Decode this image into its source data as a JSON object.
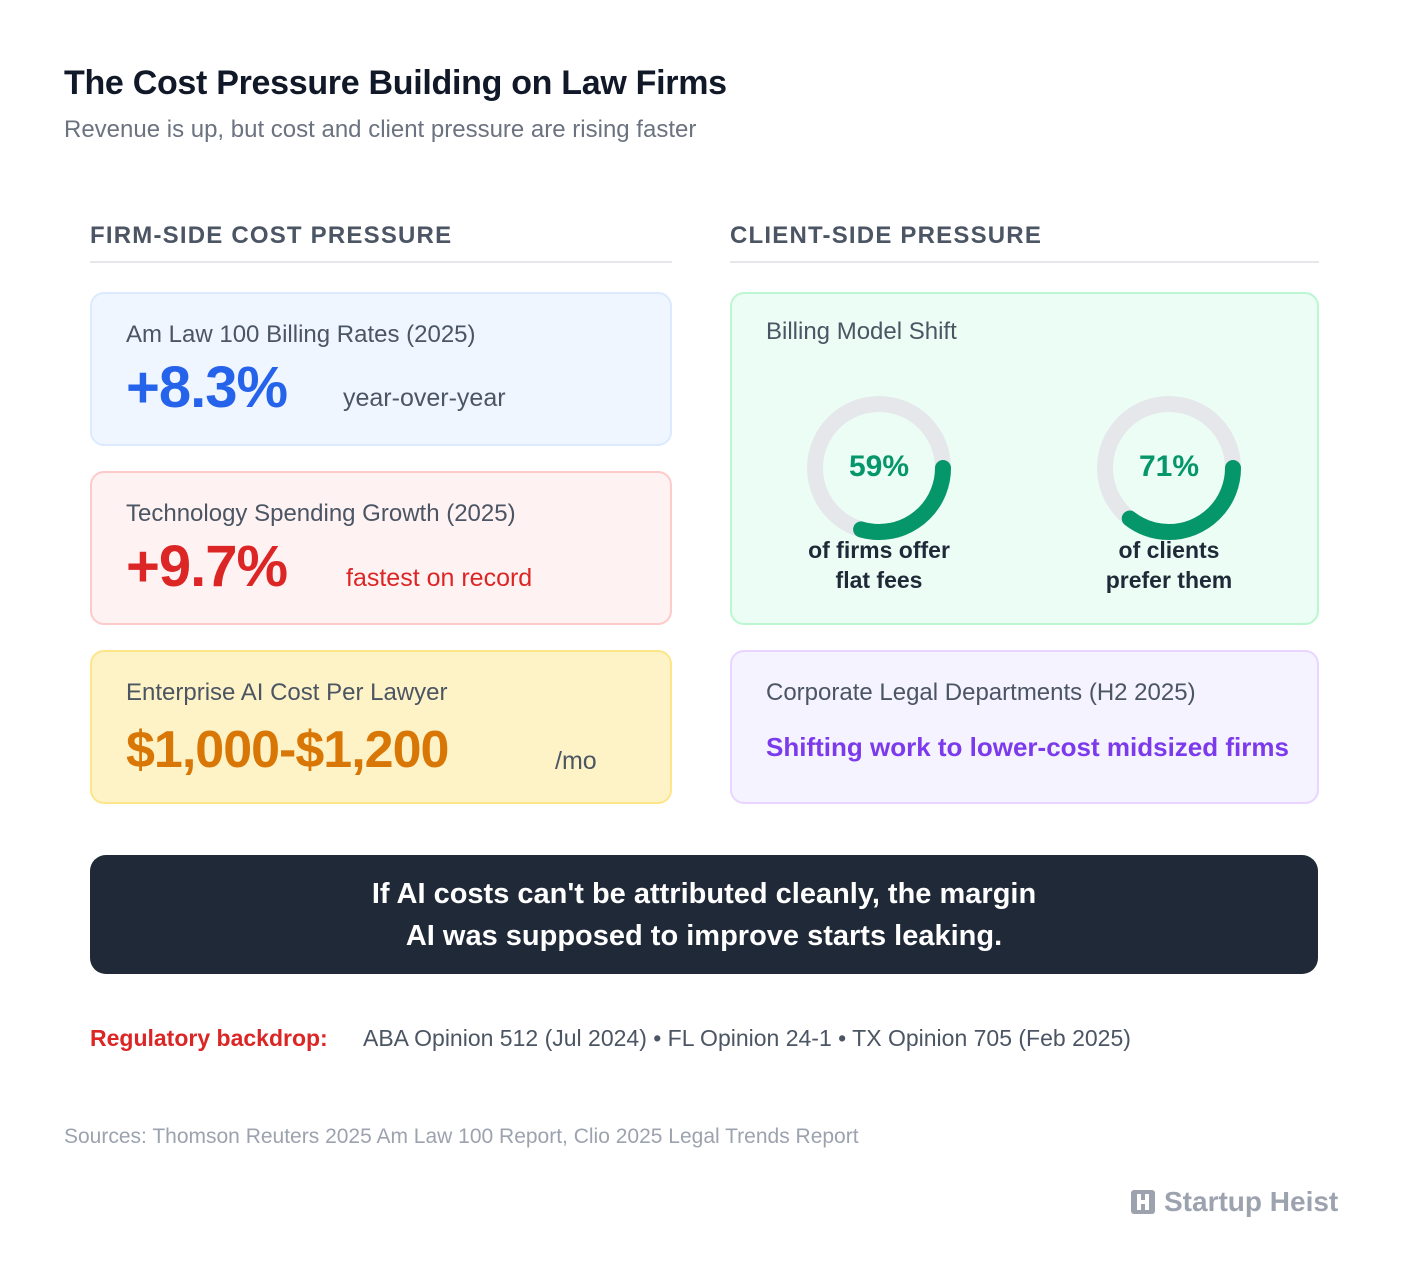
{
  "header": {
    "title": "The Cost Pressure Building on Law Firms",
    "subtitle": "Revenue is up, but cost and client pressure are rising faster"
  },
  "sections": {
    "firm": "FIRM-SIDE COST PRESSURE",
    "client": "CLIENT-SIDE PRESSURE"
  },
  "firm_cards": [
    {
      "label": "Am Law 100 Billing Rates (2025)",
      "value": "+8.3%",
      "note": "year-over-year"
    },
    {
      "label": "Technology Spending Growth (2025)",
      "value": "+9.7%",
      "note": "fastest on record"
    },
    {
      "label": "Enterprise AI Cost Per Lawyer",
      "value": "$1,000-$1,200",
      "note": "/mo"
    }
  ],
  "billing": {
    "label": "Billing Model Shift",
    "donuts": [
      {
        "percent": "59%",
        "fraction": 0.59,
        "caption_line1": "of firms offer",
        "caption_line2": "flat fees"
      },
      {
        "percent": "71%",
        "fraction": 0.71,
        "caption_line1": "of clients",
        "caption_line2": "prefer them"
      }
    ]
  },
  "corporate": {
    "label": "Corporate Legal Departments (H2 2025)",
    "statement": "Shifting work to lower-cost midsized firms"
  },
  "callout": {
    "line1": "If AI costs can't be attributed cleanly, the margin",
    "line2": "AI was supposed to improve starts leaking."
  },
  "regulatory": {
    "label": "Regulatory backdrop:",
    "text": "ABA Opinion 512 (Jul 2024) • FL Opinion 24-1 • TX Opinion 705 (Feb 2025)"
  },
  "sources": "Sources: Thomson Reuters 2025 Am Law 100 Report, Clio 2025 Legal Trends Report",
  "brand": {
    "name": "Startup Heist",
    "icon": "building-h-icon"
  },
  "colors": {
    "blue": "#2563eb",
    "red": "#dc2626",
    "orange": "#d97706",
    "green": "#059669",
    "purple": "#7c3aed",
    "track": "#e5e7eb"
  }
}
